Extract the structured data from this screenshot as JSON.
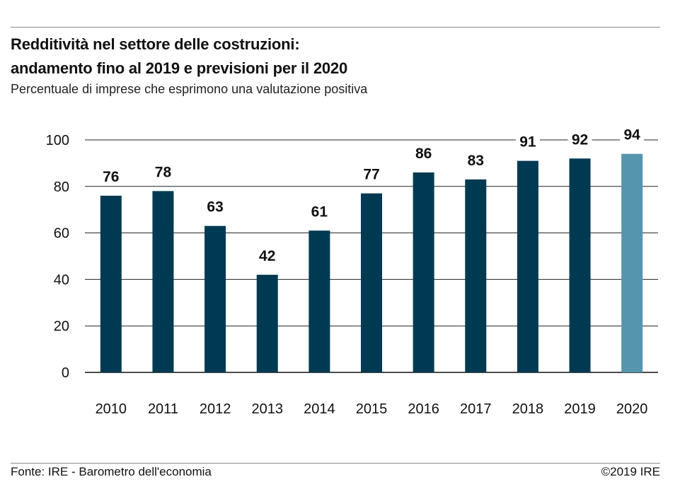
{
  "header": {
    "title_line1": "Redditività nel settore delle costruzioni:",
    "title_line2": "andamento fino al 2019 e previsioni per il 2020",
    "subtitle": "Percentuale di imprese che esprimono una valutazione positiva"
  },
  "footer": {
    "source": "Fonte: IRE - Barometro dell'economia",
    "copyright": "©2019 IRE"
  },
  "chart_data": {
    "type": "bar",
    "title": "Redditività nel settore delle costruzioni: andamento fino al 2019 e previsioni per il 2020",
    "subtitle": "Percentuale di imprese che esprimono una valutazione positiva",
    "categories": [
      "2010",
      "2011",
      "2012",
      "2013",
      "2014",
      "2015",
      "2016",
      "2017",
      "2018",
      "2019",
      "2020"
    ],
    "values": [
      76,
      78,
      63,
      42,
      61,
      77,
      86,
      83,
      91,
      92,
      94
    ],
    "labels": [
      "76",
      "78",
      "63",
      "42",
      "61",
      "77",
      "86",
      "83",
      "91",
      "92",
      "94"
    ],
    "ylim": [
      0,
      100
    ],
    "yticks": [
      0,
      20,
      40,
      60,
      80,
      100
    ],
    "grid": true,
    "colors": {
      "actual": "#003a52",
      "forecast": "#5595ae"
    },
    "forecast_categories": [
      "2020"
    ]
  }
}
